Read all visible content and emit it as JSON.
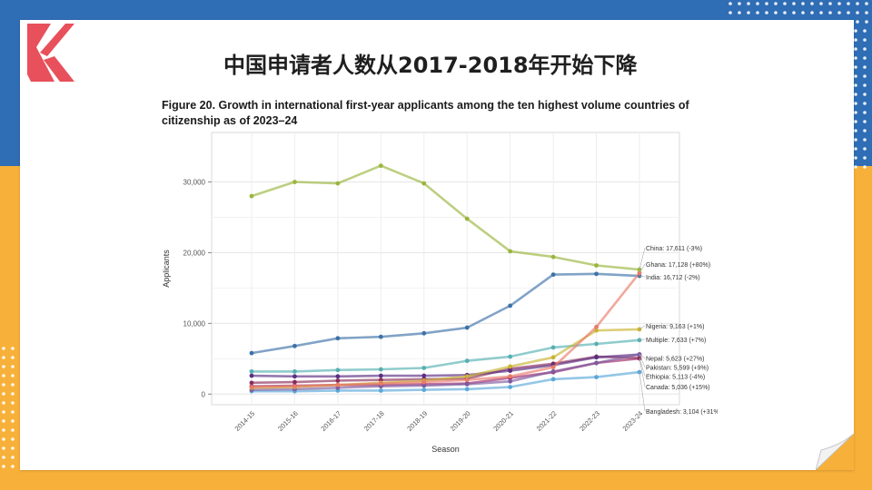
{
  "slide": {
    "title": "中国申请者人数从2017-2018年开始下降",
    "logo": "k-logo-icon",
    "colors": {
      "blue": "#2f6db5",
      "orange": "#f7b13a",
      "logo_red": "#e8505b"
    }
  },
  "figure": {
    "caption_line1": "Figure 20. Growth in international first-year applicants among the ten highest volume countries of",
    "caption_line2": "citizenship as of 2023–24"
  },
  "chart_data": {
    "type": "line",
    "xlabel": "Season",
    "ylabel": "Applicants",
    "x": [
      "2014-15",
      "2015-16",
      "2016-17",
      "2017-18",
      "2018-19",
      "2019-20",
      "2020-21",
      "2021-22",
      "2022-23",
      "2023-24"
    ],
    "yticks": [
      0,
      10000,
      20000,
      30000
    ],
    "ytick_labels": [
      "0",
      "10,000",
      "20,000",
      "30,000"
    ],
    "ylim": [
      -1500,
      37000
    ],
    "grid": true,
    "series": [
      {
        "name": "China: 17,611 (-3%)",
        "color": "#9ab53d",
        "values": [
          28000,
          30000,
          29800,
          32300,
          29800,
          24800,
          20200,
          19400,
          18200,
          17611
        ]
      },
      {
        "name": "Ghana: 17,128 (+80%)",
        "color": "#ea7a68",
        "values": [
          1000,
          1100,
          1300,
          1500,
          1700,
          2000,
          2500,
          3800,
          9500,
          17128
        ]
      },
      {
        "name": "India: 16,712 (-2%)",
        "color": "#3d72a8",
        "values": [
          5800,
          6800,
          7900,
          8100,
          8600,
          9400,
          12500,
          16900,
          17000,
          16712
        ]
      },
      {
        "name": "Nigeria: 9,163 (+1%)",
        "color": "#c9b331",
        "values": [
          900,
          1000,
          1300,
          1600,
          1900,
          2500,
          3900,
          5200,
          9000,
          9163
        ]
      },
      {
        "name": "Multiple: 7,633 (+7%)",
        "color": "#56b0b2",
        "values": [
          3200,
          3200,
          3400,
          3500,
          3700,
          4700,
          5300,
          6600,
          7100,
          7633
        ]
      },
      {
        "name": "Nepal: 5,623 (+27%)",
        "color": "#7d5aa0",
        "values": [
          600,
          700,
          900,
          1100,
          1200,
          1400,
          1800,
          3200,
          4400,
          5623
        ]
      },
      {
        "name": "Pakistan: 5,599 (+9%)",
        "color": "#5a2d82",
        "values": [
          2600,
          2500,
          2500,
          2600,
          2600,
          2700,
          3300,
          4100,
          5200,
          5599
        ]
      },
      {
        "name": "Ethiopia: 5,113 (-4%)",
        "color": "#8a2c5a",
        "values": [
          1600,
          1700,
          1900,
          2000,
          2100,
          2200,
          3600,
          4300,
          5300,
          5113
        ]
      },
      {
        "name": "Canada: 5,036 (+15%)",
        "color": "#a0286a",
        "values": [
          1100,
          1200,
          1300,
          1300,
          1400,
          1500,
          2300,
          3100,
          4400,
          5036
        ]
      },
      {
        "name": "Bangladesh: 3,104 (+31%)",
        "color": "#5aa8d8",
        "values": [
          400,
          400,
          500,
          500,
          600,
          700,
          1000,
          2100,
          2400,
          3104
        ]
      }
    ]
  }
}
